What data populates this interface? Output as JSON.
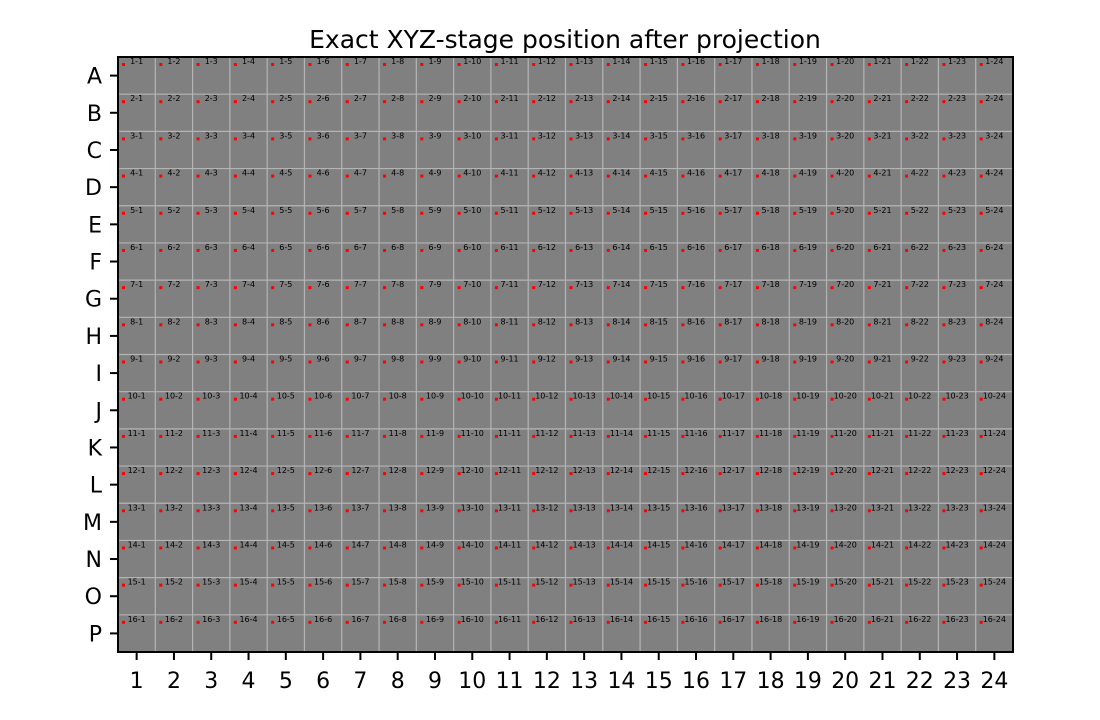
{
  "chart_data": {
    "type": "scatter",
    "title": "Exact XYZ-stage position after projection",
    "xlabel": "",
    "ylabel": "",
    "x_tick_labels": [
      "1",
      "2",
      "3",
      "4",
      "5",
      "6",
      "7",
      "8",
      "9",
      "10",
      "11",
      "12",
      "13",
      "14",
      "15",
      "16",
      "17",
      "18",
      "19",
      "20",
      "21",
      "22",
      "23",
      "24"
    ],
    "y_tick_labels": [
      "A",
      "B",
      "C",
      "D",
      "E",
      "F",
      "G",
      "H",
      "I",
      "J",
      "K",
      "L",
      "M",
      "N",
      "O",
      "P"
    ],
    "xlim": [
      0.5,
      24.5
    ],
    "ylim": [
      16.5,
      0.5
    ],
    "grid": true,
    "background_color": "#808080",
    "grid_color": "#b4b4b4",
    "point_color": "#ff0000",
    "cell_label_format": "{row}-{col}",
    "series": [
      {
        "rows": 16,
        "cols": 24
      }
    ]
  }
}
